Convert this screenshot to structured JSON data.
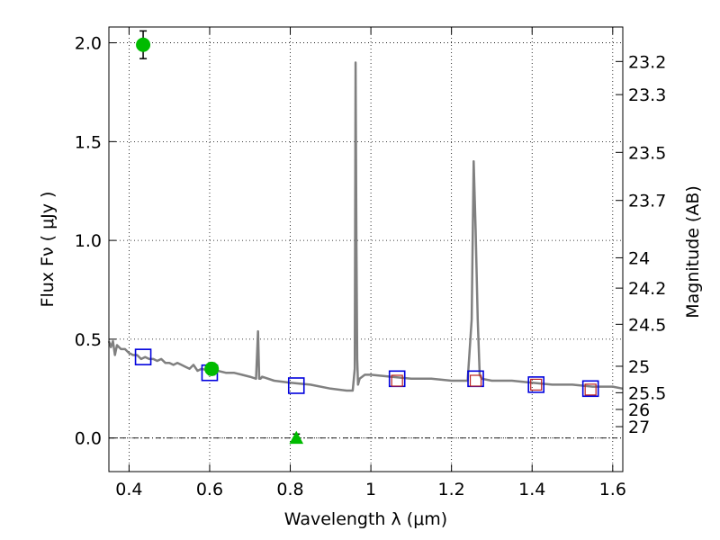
{
  "chart_data": {
    "type": "scatter",
    "xlabel": "Wavelength  λ (μm)",
    "ylabel": "Flux  Fν  ( μJy )",
    "y2label": "Magnitude (AB)",
    "xlim": [
      0.35,
      1.625
    ],
    "ylim": [
      -0.17,
      2.08
    ],
    "grid": true,
    "x_ticks": [
      0.4,
      0.6,
      0.8,
      1.0,
      1.2,
      1.4,
      1.6
    ],
    "x_tick_labels": [
      "0.4",
      "0.6",
      "0.8",
      "1",
      "1.2",
      "1.4",
      "1.6"
    ],
    "y_ticks": [
      0.0,
      0.5,
      1.0,
      1.5,
      2.0
    ],
    "y_tick_labels": [
      "0.0",
      "0.5",
      "1.0",
      "1.5",
      "2.0"
    ],
    "mag_ticks": [
      "23.2",
      "23.3",
      "23.5",
      "23.7",
      "24",
      "24.2",
      "24.5",
      "25",
      "25.5",
      "26",
      "27"
    ],
    "model_spectrum": {
      "color": "#808080",
      "x": [
        0.35,
        0.355,
        0.36,
        0.365,
        0.37,
        0.38,
        0.39,
        0.4,
        0.41,
        0.42,
        0.43,
        0.44,
        0.45,
        0.46,
        0.47,
        0.48,
        0.49,
        0.5,
        0.51,
        0.52,
        0.53,
        0.54,
        0.55,
        0.56,
        0.57,
        0.58,
        0.6,
        0.62,
        0.64,
        0.66,
        0.68,
        0.7,
        0.715,
        0.72,
        0.723,
        0.726,
        0.73,
        0.76,
        0.8,
        0.85,
        0.9,
        0.94,
        0.955,
        0.96,
        0.962,
        0.964,
        0.966,
        0.968,
        0.972,
        0.985,
        1.0,
        1.05,
        1.1,
        1.15,
        1.2,
        1.24,
        1.25,
        1.255,
        1.26,
        1.265,
        1.27,
        1.275,
        1.3,
        1.35,
        1.4,
        1.45,
        1.5,
        1.55,
        1.6,
        1.625
      ],
      "y": [
        0.49,
        0.46,
        0.49,
        0.42,
        0.47,
        0.45,
        0.45,
        0.43,
        0.42,
        0.42,
        0.4,
        0.41,
        0.4,
        0.4,
        0.39,
        0.4,
        0.38,
        0.38,
        0.37,
        0.38,
        0.37,
        0.36,
        0.35,
        0.37,
        0.34,
        0.35,
        0.34,
        0.34,
        0.33,
        0.33,
        0.32,
        0.31,
        0.3,
        0.54,
        0.3,
        0.3,
        0.31,
        0.29,
        0.28,
        0.27,
        0.25,
        0.24,
        0.24,
        0.35,
        1.9,
        1.0,
        0.4,
        0.27,
        0.3,
        0.32,
        0.32,
        0.31,
        0.3,
        0.3,
        0.29,
        0.29,
        0.6,
        1.4,
        1.05,
        0.6,
        0.32,
        0.3,
        0.29,
        0.29,
        0.28,
        0.27,
        0.27,
        0.26,
        0.26,
        0.25
      ]
    },
    "series": [
      {
        "marker": "square",
        "color": "#0000dd",
        "points": [
          {
            "x": 0.435,
            "y": 0.41
          },
          {
            "x": 0.6,
            "y": 0.33
          },
          {
            "x": 0.815,
            "y": 0.265
          },
          {
            "x": 1.065,
            "y": 0.3
          },
          {
            "x": 1.26,
            "y": 0.3
          },
          {
            "x": 1.41,
            "y": 0.27
          },
          {
            "x": 1.545,
            "y": 0.25
          }
        ]
      },
      {
        "marker": "small-square",
        "color": "#bb2222",
        "points": [
          {
            "x": 1.065,
            "y": 0.29
          },
          {
            "x": 1.26,
            "y": 0.29
          },
          {
            "x": 1.41,
            "y": 0.27
          },
          {
            "x": 1.545,
            "y": 0.245
          }
        ]
      },
      {
        "marker": "circle",
        "color": "#00bb00",
        "points": [
          {
            "x": 0.435,
            "y": 1.99,
            "err": 0.07
          },
          {
            "x": 0.605,
            "y": 0.35,
            "err": 0.03
          }
        ]
      },
      {
        "marker": "triangle",
        "color": "#00bb00",
        "points": [
          {
            "x": 0.815,
            "y": 0.0,
            "err": 0.02
          }
        ]
      }
    ]
  }
}
